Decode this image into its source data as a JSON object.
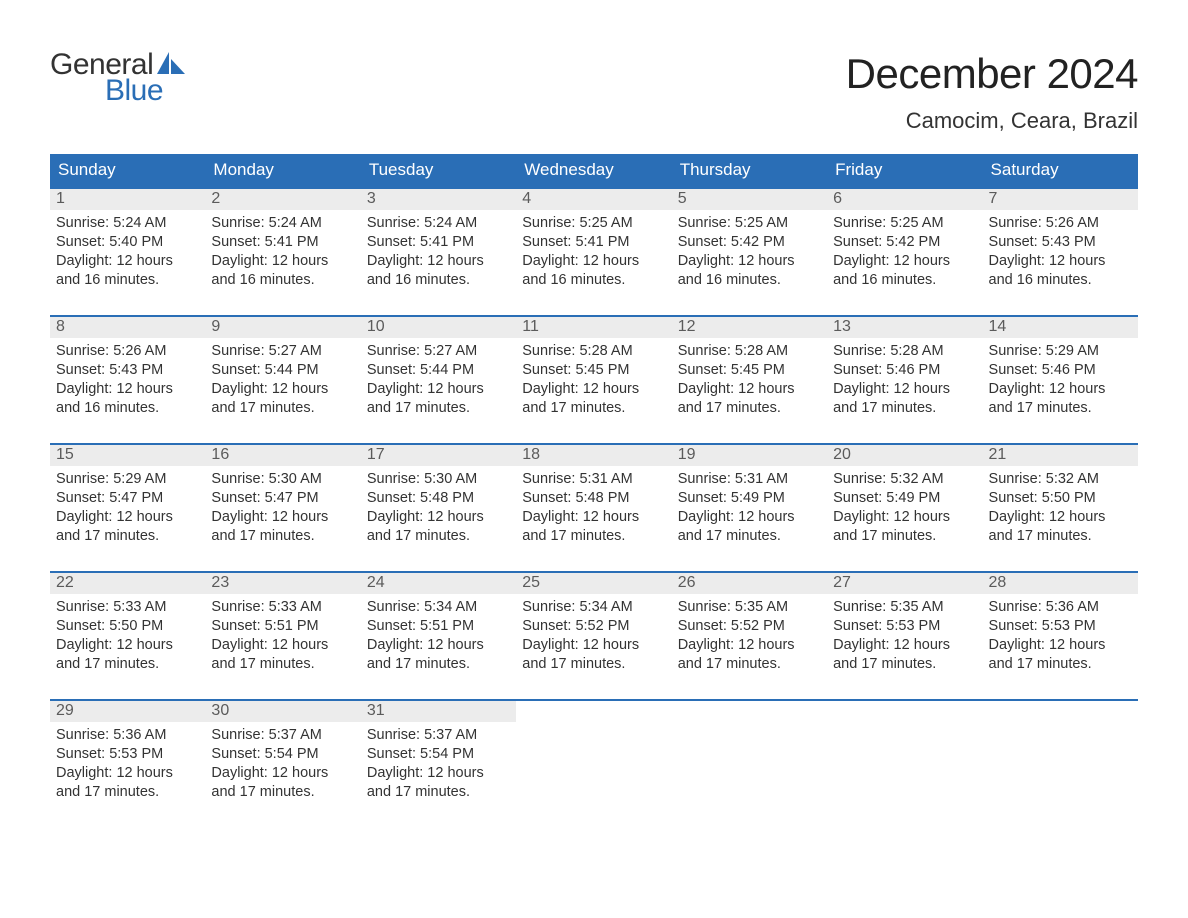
{
  "brand": {
    "word1": "General",
    "word2": "Blue",
    "word1_color": "#333333",
    "word2_color": "#2a6eb6",
    "sail_color": "#2a6eb6"
  },
  "header": {
    "month_title": "December 2024",
    "location": "Camocim, Ceara, Brazil"
  },
  "styling": {
    "header_bg": "#2a6eb6",
    "header_text": "#ffffff",
    "daynum_bg": "#ececec",
    "daynum_text": "#5b5b5b",
    "row_border": "#2a6eb6",
    "body_text": "#333333",
    "page_bg": "#ffffff",
    "month_title_fontsize": 42,
    "location_fontsize": 22,
    "dayheader_fontsize": 17,
    "daynum_fontsize": 16,
    "body_fontsize": 14.5
  },
  "weekday_labels": [
    "Sunday",
    "Monday",
    "Tuesday",
    "Wednesday",
    "Thursday",
    "Friday",
    "Saturday"
  ],
  "label_prefixes": {
    "sunrise": "Sunrise: ",
    "sunset": "Sunset: ",
    "daylight": "Daylight: "
  },
  "days": [
    {
      "n": 1,
      "sunrise": "5:24 AM",
      "sunset": "5:40 PM",
      "daylight1": "12 hours",
      "daylight2": "and 16 minutes."
    },
    {
      "n": 2,
      "sunrise": "5:24 AM",
      "sunset": "5:41 PM",
      "daylight1": "12 hours",
      "daylight2": "and 16 minutes."
    },
    {
      "n": 3,
      "sunrise": "5:24 AM",
      "sunset": "5:41 PM",
      "daylight1": "12 hours",
      "daylight2": "and 16 minutes."
    },
    {
      "n": 4,
      "sunrise": "5:25 AM",
      "sunset": "5:41 PM",
      "daylight1": "12 hours",
      "daylight2": "and 16 minutes."
    },
    {
      "n": 5,
      "sunrise": "5:25 AM",
      "sunset": "5:42 PM",
      "daylight1": "12 hours",
      "daylight2": "and 16 minutes."
    },
    {
      "n": 6,
      "sunrise": "5:25 AM",
      "sunset": "5:42 PM",
      "daylight1": "12 hours",
      "daylight2": "and 16 minutes."
    },
    {
      "n": 7,
      "sunrise": "5:26 AM",
      "sunset": "5:43 PM",
      "daylight1": "12 hours",
      "daylight2": "and 16 minutes."
    },
    {
      "n": 8,
      "sunrise": "5:26 AM",
      "sunset": "5:43 PM",
      "daylight1": "12 hours",
      "daylight2": "and 16 minutes."
    },
    {
      "n": 9,
      "sunrise": "5:27 AM",
      "sunset": "5:44 PM",
      "daylight1": "12 hours",
      "daylight2": "and 17 minutes."
    },
    {
      "n": 10,
      "sunrise": "5:27 AM",
      "sunset": "5:44 PM",
      "daylight1": "12 hours",
      "daylight2": "and 17 minutes."
    },
    {
      "n": 11,
      "sunrise": "5:28 AM",
      "sunset": "5:45 PM",
      "daylight1": "12 hours",
      "daylight2": "and 17 minutes."
    },
    {
      "n": 12,
      "sunrise": "5:28 AM",
      "sunset": "5:45 PM",
      "daylight1": "12 hours",
      "daylight2": "and 17 minutes."
    },
    {
      "n": 13,
      "sunrise": "5:28 AM",
      "sunset": "5:46 PM",
      "daylight1": "12 hours",
      "daylight2": "and 17 minutes."
    },
    {
      "n": 14,
      "sunrise": "5:29 AM",
      "sunset": "5:46 PM",
      "daylight1": "12 hours",
      "daylight2": "and 17 minutes."
    },
    {
      "n": 15,
      "sunrise": "5:29 AM",
      "sunset": "5:47 PM",
      "daylight1": "12 hours",
      "daylight2": "and 17 minutes."
    },
    {
      "n": 16,
      "sunrise": "5:30 AM",
      "sunset": "5:47 PM",
      "daylight1": "12 hours",
      "daylight2": "and 17 minutes."
    },
    {
      "n": 17,
      "sunrise": "5:30 AM",
      "sunset": "5:48 PM",
      "daylight1": "12 hours",
      "daylight2": "and 17 minutes."
    },
    {
      "n": 18,
      "sunrise": "5:31 AM",
      "sunset": "5:48 PM",
      "daylight1": "12 hours",
      "daylight2": "and 17 minutes."
    },
    {
      "n": 19,
      "sunrise": "5:31 AM",
      "sunset": "5:49 PM",
      "daylight1": "12 hours",
      "daylight2": "and 17 minutes."
    },
    {
      "n": 20,
      "sunrise": "5:32 AM",
      "sunset": "5:49 PM",
      "daylight1": "12 hours",
      "daylight2": "and 17 minutes."
    },
    {
      "n": 21,
      "sunrise": "5:32 AM",
      "sunset": "5:50 PM",
      "daylight1": "12 hours",
      "daylight2": "and 17 minutes."
    },
    {
      "n": 22,
      "sunrise": "5:33 AM",
      "sunset": "5:50 PM",
      "daylight1": "12 hours",
      "daylight2": "and 17 minutes."
    },
    {
      "n": 23,
      "sunrise": "5:33 AM",
      "sunset": "5:51 PM",
      "daylight1": "12 hours",
      "daylight2": "and 17 minutes."
    },
    {
      "n": 24,
      "sunrise": "5:34 AM",
      "sunset": "5:51 PM",
      "daylight1": "12 hours",
      "daylight2": "and 17 minutes."
    },
    {
      "n": 25,
      "sunrise": "5:34 AM",
      "sunset": "5:52 PM",
      "daylight1": "12 hours",
      "daylight2": "and 17 minutes."
    },
    {
      "n": 26,
      "sunrise": "5:35 AM",
      "sunset": "5:52 PM",
      "daylight1": "12 hours",
      "daylight2": "and 17 minutes."
    },
    {
      "n": 27,
      "sunrise": "5:35 AM",
      "sunset": "5:53 PM",
      "daylight1": "12 hours",
      "daylight2": "and 17 minutes."
    },
    {
      "n": 28,
      "sunrise": "5:36 AM",
      "sunset": "5:53 PM",
      "daylight1": "12 hours",
      "daylight2": "and 17 minutes."
    },
    {
      "n": 29,
      "sunrise": "5:36 AM",
      "sunset": "5:53 PM",
      "daylight1": "12 hours",
      "daylight2": "and 17 minutes."
    },
    {
      "n": 30,
      "sunrise": "5:37 AM",
      "sunset": "5:54 PM",
      "daylight1": "12 hours",
      "daylight2": "and 17 minutes."
    },
    {
      "n": 31,
      "sunrise": "5:37 AM",
      "sunset": "5:54 PM",
      "daylight1": "12 hours",
      "daylight2": "and 17 minutes."
    }
  ],
  "grid": {
    "rows": 5,
    "cols": 7,
    "start_weekday": 0,
    "trailing_blanks": 4
  }
}
